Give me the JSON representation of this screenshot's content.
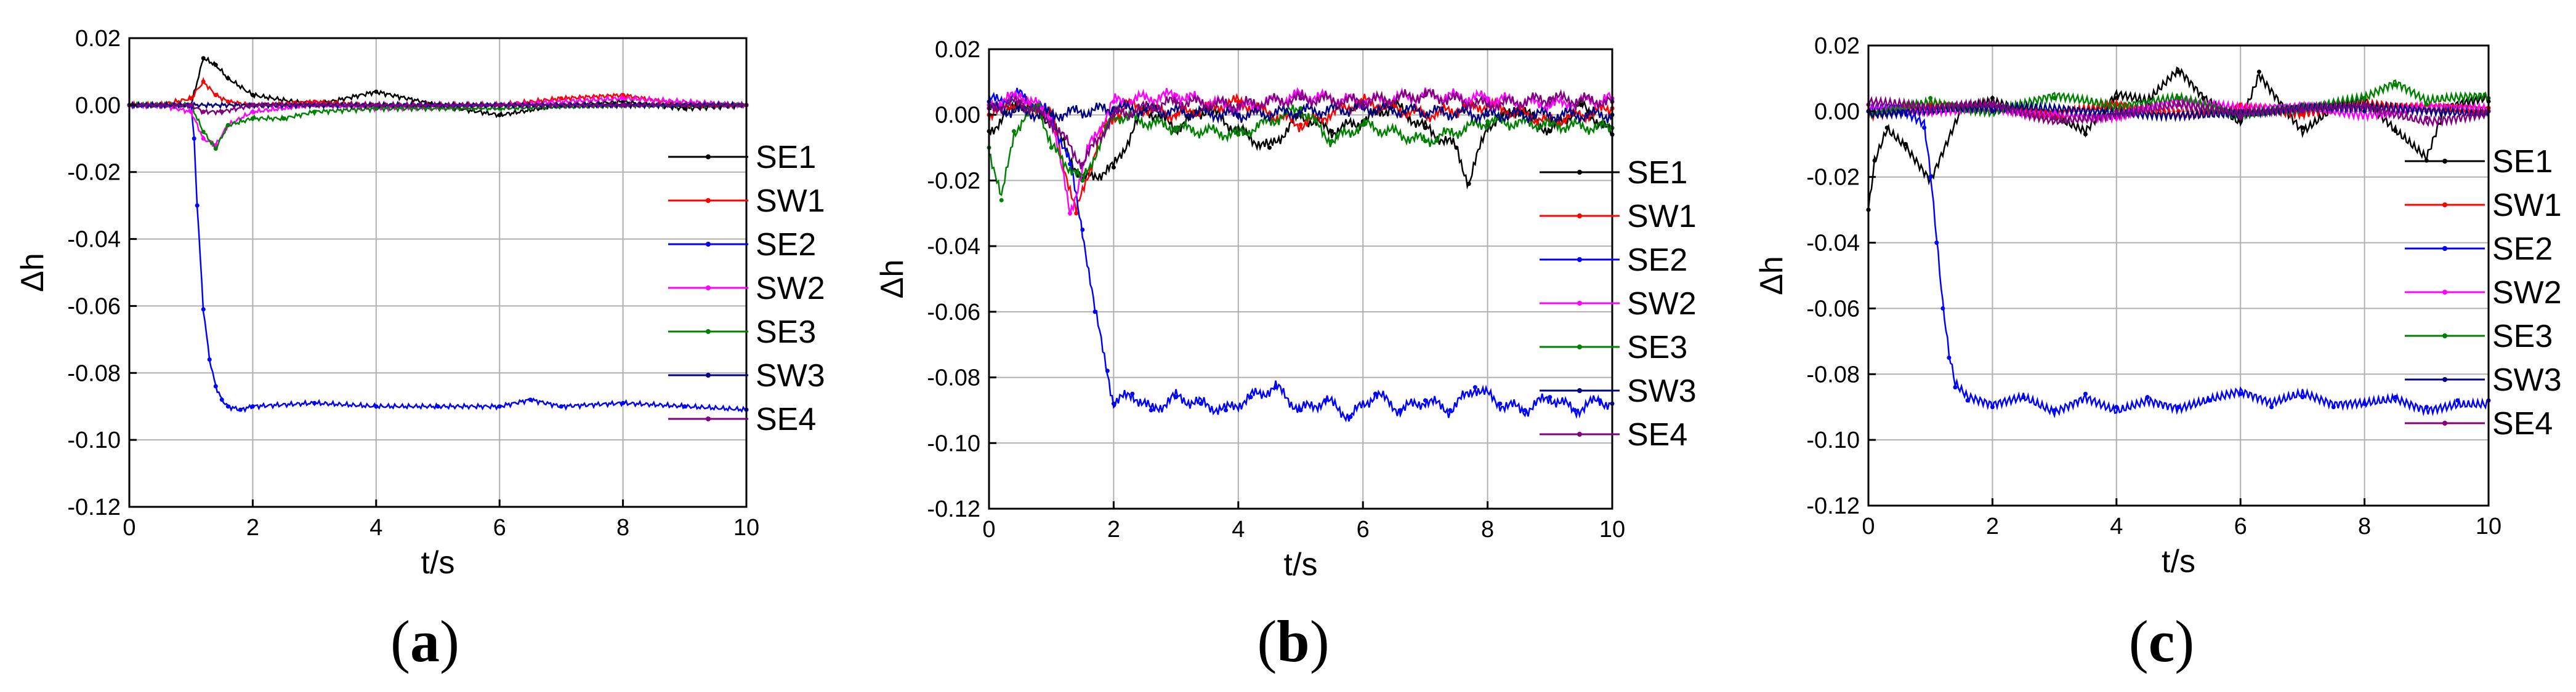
{
  "chart_data": [
    {
      "panel_label": "a",
      "type": "line",
      "xlabel": "t/s",
      "ylabel": "Δh",
      "xlim": [
        0,
        10
      ],
      "ylim": [
        -0.12,
        0.02
      ],
      "xticks": [
        "0",
        "2",
        "4",
        "6",
        "8",
        "10"
      ],
      "yticks": [
        "0.02",
        "0.00",
        "-0.02",
        "-0.04",
        "-0.06",
        "-0.08",
        "-0.10",
        "-0.12"
      ],
      "grid": true,
      "legend_position": "right",
      "series": [
        {
          "name": "SE1",
          "color": "#000000",
          "x": [
            0,
            0.5,
            1.0,
            1.2,
            1.4,
            1.6,
            2.0,
            3.0,
            4.0,
            5.0,
            6.0,
            7.0,
            8.0,
            9.0,
            10.0
          ],
          "y": [
            0.0,
            0.0,
            0.0,
            0.014,
            0.012,
            0.008,
            0.003,
            0.0,
            0.004,
            0.0,
            -0.003,
            0.0,
            0.001,
            -0.001,
            0.0
          ]
        },
        {
          "name": "SW1",
          "color": "#ff0000",
          "x": [
            0,
            0.5,
            1.0,
            1.2,
            1.4,
            1.6,
            2.0,
            3.0,
            4.0,
            6.0,
            7.0,
            8.0,
            9.0,
            10.0
          ],
          "y": [
            0.0,
            0.0,
            0.002,
            0.007,
            0.003,
            0.001,
            0.0,
            0.001,
            0.0,
            0.0,
            0.002,
            0.003,
            0.0,
            0.0
          ]
        },
        {
          "name": "SE2",
          "color": "#0000ff",
          "x": [
            0,
            0.5,
            1.0,
            1.05,
            1.1,
            1.2,
            1.3,
            1.4,
            1.5,
            1.6,
            1.8,
            2.0,
            3.0,
            4.0,
            5.0,
            6.0,
            6.5,
            7.0,
            8.0,
            9.0,
            10.0
          ],
          "y": [
            0.0,
            0.0,
            0.0,
            -0.01,
            -0.03,
            -0.061,
            -0.076,
            -0.084,
            -0.088,
            -0.09,
            -0.091,
            -0.09,
            -0.089,
            -0.09,
            -0.09,
            -0.09,
            -0.088,
            -0.09,
            -0.089,
            -0.09,
            -0.091
          ]
        },
        {
          "name": "SW2",
          "color": "#ff00ff",
          "x": [
            0,
            0.5,
            1.0,
            1.2,
            1.4,
            1.6,
            2.0,
            3.0,
            4.0,
            6.0,
            8.0,
            10.0
          ],
          "y": [
            0.0,
            0.0,
            -0.002,
            -0.01,
            -0.012,
            -0.006,
            -0.002,
            0.0,
            -0.001,
            0.0,
            0.002,
            0.0
          ]
        },
        {
          "name": "SE3",
          "color": "#008000",
          "x": [
            0,
            0.5,
            1.0,
            1.2,
            1.4,
            1.6,
            2.0,
            2.5,
            3.0,
            4.0,
            6.0,
            8.0,
            10.0
          ],
          "y": [
            0.0,
            0.0,
            0.0,
            -0.008,
            -0.013,
            -0.006,
            -0.004,
            -0.004,
            -0.002,
            -0.001,
            -0.001,
            0.0,
            0.0
          ]
        },
        {
          "name": "SW3",
          "color": "#000080",
          "x": [
            0,
            1.0,
            2.0,
            4.0,
            6.0,
            8.0,
            10.0
          ],
          "y": [
            0.0,
            0.0,
            0.0,
            0.0,
            0.0,
            0.0,
            0.0
          ]
        },
        {
          "name": "SE4",
          "color": "#800080",
          "x": [
            0,
            1.0,
            1.2,
            1.5,
            2.0,
            4.0,
            6.0,
            8.0,
            10.0
          ],
          "y": [
            0.0,
            0.0,
            -0.002,
            -0.002,
            0.0,
            0.0,
            0.0,
            0.0,
            0.0
          ]
        }
      ]
    },
    {
      "panel_label": "b",
      "type": "line",
      "xlabel": "t/s",
      "ylabel": "Δh",
      "xlim": [
        0,
        10
      ],
      "ylim": [
        -0.12,
        0.02
      ],
      "xticks": [
        "0",
        "2",
        "4",
        "6",
        "8",
        "10"
      ],
      "yticks": [
        "0.02",
        "0.00",
        "-0.02",
        "-0.04",
        "-0.06",
        "-0.08",
        "-0.10",
        "-0.12"
      ],
      "grid": true,
      "legend_position": "right",
      "series": [
        {
          "name": "SE1",
          "color": "#000000",
          "x": [
            0,
            0.5,
            1.0,
            1.5,
            2.0,
            2.5,
            3.0,
            3.5,
            4.0,
            4.5,
            5.0,
            5.5,
            6.0,
            6.5,
            7.0,
            7.5,
            7.7,
            8.0,
            8.5,
            9.0,
            9.5,
            10.0
          ],
          "y": [
            -0.005,
            0.004,
            -0.002,
            -0.02,
            -0.016,
            0.002,
            -0.004,
            0.002,
            -0.005,
            -0.01,
            0.0,
            -0.005,
            -0.002,
            0.003,
            -0.004,
            -0.01,
            -0.021,
            -0.003,
            0.002,
            -0.005,
            0.003,
            -0.006
          ]
        },
        {
          "name": "SW1",
          "color": "#ff0000",
          "x": [
            0,
            0.5,
            1.0,
            1.4,
            1.8,
            2.2,
            3.0,
            4.0,
            5.0,
            6.0,
            7.0,
            8.0,
            9.0,
            10.0
          ],
          "y": [
            0.0,
            0.004,
            0.0,
            -0.03,
            -0.005,
            0.003,
            0.0,
            0.004,
            -0.003,
            0.004,
            0.0,
            0.003,
            -0.002,
            0.002
          ]
        },
        {
          "name": "SE2",
          "color": "#0000ff",
          "x": [
            0,
            0.5,
            1.0,
            1.3,
            1.5,
            1.7,
            1.9,
            2.0,
            2.3,
            2.6,
            3.0,
            3.4,
            3.8,
            4.2,
            4.6,
            5.0,
            5.4,
            5.8,
            6.2,
            6.6,
            7.0,
            7.4,
            7.8,
            8.2,
            8.6,
            9.0,
            9.4,
            9.8,
            10.0
          ],
          "y": [
            0.004,
            0.006,
            0.0,
            -0.015,
            -0.035,
            -0.06,
            -0.078,
            -0.088,
            -0.085,
            -0.09,
            -0.086,
            -0.088,
            -0.09,
            -0.086,
            -0.083,
            -0.09,
            -0.087,
            -0.092,
            -0.085,
            -0.09,
            -0.087,
            -0.09,
            -0.083,
            -0.088,
            -0.09,
            -0.086,
            -0.09,
            -0.087,
            -0.088
          ]
        },
        {
          "name": "SW2",
          "color": "#ff00ff",
          "x": [
            0,
            0.5,
            1.0,
            1.3,
            1.6,
            2.0,
            3.0,
            4.0,
            5.0,
            6.0,
            7.0,
            8.0,
            9.0,
            10.0
          ],
          "y": [
            0.003,
            0.006,
            0.0,
            -0.03,
            -0.01,
            0.004,
            0.006,
            0.002,
            0.006,
            0.004,
            0.006,
            0.005,
            0.003,
            0.005
          ]
        },
        {
          "name": "SE3",
          "color": "#008000",
          "x": [
            0,
            0.2,
            0.4,
            0.8,
            1.0,
            1.5,
            2.0,
            3.0,
            4.0,
            5.0,
            5.5,
            6.0,
            7.0,
            8.0,
            9.0,
            10.0
          ],
          "y": [
            -0.01,
            -0.026,
            -0.005,
            0.003,
            -0.01,
            -0.02,
            0.0,
            -0.004,
            -0.006,
            0.002,
            -0.008,
            -0.003,
            -0.008,
            -0.002,
            -0.003,
            -0.004
          ]
        },
        {
          "name": "SW3",
          "color": "#000080",
          "x": [
            0,
            1.0,
            2.0,
            4.0,
            6.0,
            8.0,
            10.0
          ],
          "y": [
            0.002,
            0.0,
            0.002,
            0.0,
            0.002,
            0.0,
            0.0
          ]
        },
        {
          "name": "SE4",
          "color": "#800080",
          "x": [
            0,
            0.5,
            1.0,
            1.5,
            2.0,
            3.0,
            4.0,
            5.0,
            6.0,
            7.0,
            8.0,
            9.0,
            10.0
          ],
          "y": [
            0.002,
            0.004,
            -0.002,
            -0.015,
            0.0,
            0.004,
            0.003,
            0.005,
            0.004,
            0.006,
            0.003,
            0.005,
            0.004
          ]
        }
      ]
    },
    {
      "panel_label": "c",
      "type": "line",
      "xlabel": "t/s",
      "ylabel": "Δh",
      "xlim": [
        0,
        10
      ],
      "ylim": [
        -0.12,
        0.02
      ],
      "xticks": [
        "0",
        "2",
        "4",
        "6",
        "8",
        "10"
      ],
      "yticks": [
        "0.02",
        "0.00",
        "-0.02",
        "-0.04",
        "-0.06",
        "-0.08",
        "-0.10",
        "-0.12"
      ],
      "grid": true,
      "legend_position": "right",
      "series": [
        {
          "name": "SE1",
          "color": "#000000",
          "x": [
            0,
            0.1,
            0.3,
            0.6,
            1.0,
            1.5,
            2.0,
            3.0,
            3.5,
            4.0,
            4.5,
            5.0,
            5.4,
            6.0,
            6.3,
            7.0,
            7.5,
            8.0,
            8.5,
            9.0,
            9.3,
            10.0
          ],
          "y": [
            -0.03,
            -0.015,
            -0.005,
            -0.01,
            -0.02,
            0.002,
            0.004,
            -0.002,
            -0.007,
            0.004,
            0.002,
            0.012,
            0.004,
            -0.003,
            0.012,
            -0.005,
            0.002,
            0.004,
            -0.006,
            -0.015,
            0.0,
            0.003
          ]
        },
        {
          "name": "SW1",
          "color": "#ff0000",
          "x": [
            0,
            1.0,
            2.0,
            3.0,
            4.0,
            5.0,
            6.0,
            7.0,
            8.0,
            9.0,
            10.0
          ],
          "y": [
            0.0,
            0.002,
            0.0,
            -0.002,
            0.002,
            0.0,
            0.002,
            -0.001,
            0.001,
            0.0,
            0.001
          ]
        },
        {
          "name": "SE2",
          "color": "#0000ff",
          "x": [
            0,
            0.5,
            0.9,
            1.0,
            1.1,
            1.2,
            1.3,
            1.4,
            1.6,
            2.0,
            2.5,
            3.0,
            3.5,
            4.0,
            4.5,
            5.0,
            5.5,
            6.0,
            6.5,
            7.0,
            7.5,
            8.0,
            8.5,
            9.0,
            9.5,
            10.0
          ],
          "y": [
            0.0,
            0.0,
            -0.005,
            -0.02,
            -0.04,
            -0.06,
            -0.075,
            -0.084,
            -0.088,
            -0.09,
            -0.087,
            -0.091,
            -0.086,
            -0.09,
            -0.087,
            -0.09,
            -0.088,
            -0.086,
            -0.09,
            -0.087,
            -0.09,
            -0.089,
            -0.087,
            -0.09,
            -0.088,
            -0.088
          ]
        },
        {
          "name": "SW2",
          "color": "#ff00ff",
          "x": [
            0,
            1.0,
            2.0,
            3.0,
            4.0,
            5.0,
            6.0,
            7.0,
            8.0,
            9.0,
            10.0
          ],
          "y": [
            0.0,
            0.0,
            0.002,
            0.0,
            -0.002,
            0.002,
            0.0,
            0.002,
            0.0,
            0.002,
            0.0
          ]
        },
        {
          "name": "SE3",
          "color": "#008000",
          "x": [
            0,
            1.0,
            2.0,
            3.0,
            4.0,
            5.0,
            6.0,
            7.0,
            8.0,
            8.5,
            9.0,
            10.0
          ],
          "y": [
            0.0,
            0.004,
            0.0,
            0.004,
            0.0,
            0.004,
            0.0,
            0.002,
            0.004,
            0.008,
            0.002,
            0.004
          ]
        },
        {
          "name": "SW3",
          "color": "#000080",
          "x": [
            0,
            1.0,
            2.0,
            4.0,
            6.0,
            8.0,
            10.0
          ],
          "y": [
            0.0,
            0.0,
            0.0,
            0.0,
            0.0,
            0.0,
            0.0
          ]
        },
        {
          "name": "SE4",
          "color": "#800080",
          "x": [
            0,
            1.0,
            2.0,
            3.0,
            4.0,
            5.0,
            6.0,
            7.0,
            8.0,
            9.0,
            10.0
          ],
          "y": [
            0.002,
            0.0,
            0.002,
            -0.002,
            0.0,
            0.002,
            -0.002,
            0.0,
            0.002,
            -0.002,
            0.0
          ]
        }
      ]
    }
  ],
  "captions": [
    {
      "open": "(",
      "letter": "a",
      "close": ")"
    },
    {
      "open": "(",
      "letter": "b",
      "close": ")"
    },
    {
      "open": "(",
      "letter": "c",
      "close": ")"
    }
  ]
}
